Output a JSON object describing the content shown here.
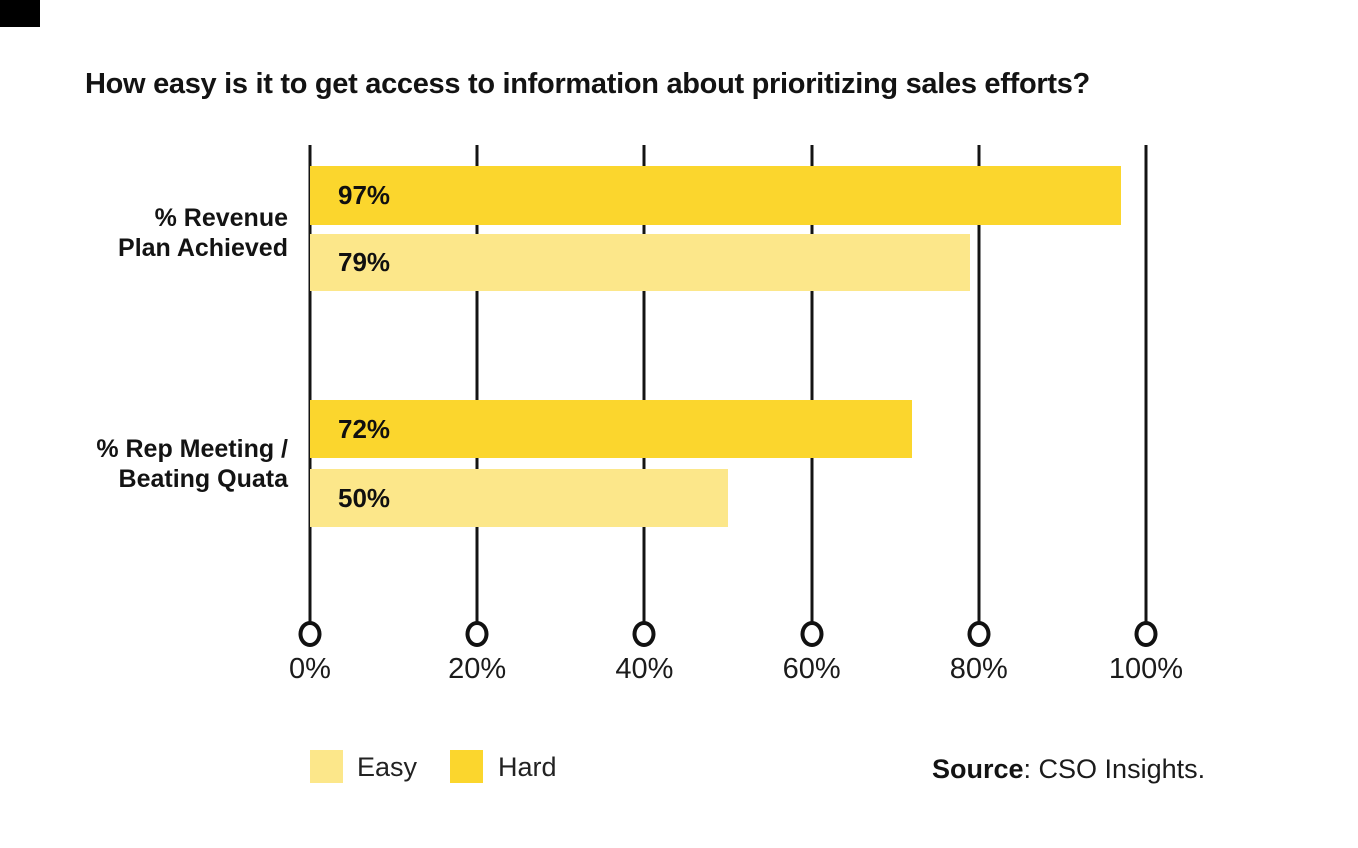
{
  "title": "How easy is it to get access to information about prioritizing sales efforts?",
  "corner_mark_color": "#000000",
  "chart_data": {
    "type": "bar",
    "orientation": "horizontal",
    "title": "How easy is it to get access to information about prioritizing sales efforts?",
    "categories": [
      "% Revenue Plan Achieved",
      "% Rep Meeting / Beating Quata"
    ],
    "category_lines": [
      {
        "line1": "% Revenue",
        "line2": "Plan Achieved"
      },
      {
        "line1": "% Rep Meeting /",
        "line2": "Beating Quata"
      }
    ],
    "series": [
      {
        "name": "Hard",
        "color": "#FBD62D",
        "values": [
          97,
          72
        ]
      },
      {
        "name": "Easy",
        "color": "#FCE78A",
        "values": [
          79,
          50
        ]
      }
    ],
    "bar_labels": [
      [
        "97%",
        "79%"
      ],
      [
        "72%",
        "50%"
      ]
    ],
    "xlim": [
      0,
      100
    ],
    "x_tick_values": [
      0,
      20,
      40,
      60,
      80,
      100
    ],
    "x_ticks": [
      "0%",
      "20%",
      "40%",
      "60%",
      "80%",
      "100%"
    ],
    "grid": "vertical-lines-with-circle-terminals",
    "gridline_color": "#141414",
    "legend_position": "bottom-left",
    "legend": [
      {
        "label": "Easy",
        "color": "#FCE78A"
      },
      {
        "label": "Hard",
        "color": "#FBD62D"
      }
    ]
  },
  "source": {
    "bold": "Source",
    "rest": ": CSO Insights."
  }
}
